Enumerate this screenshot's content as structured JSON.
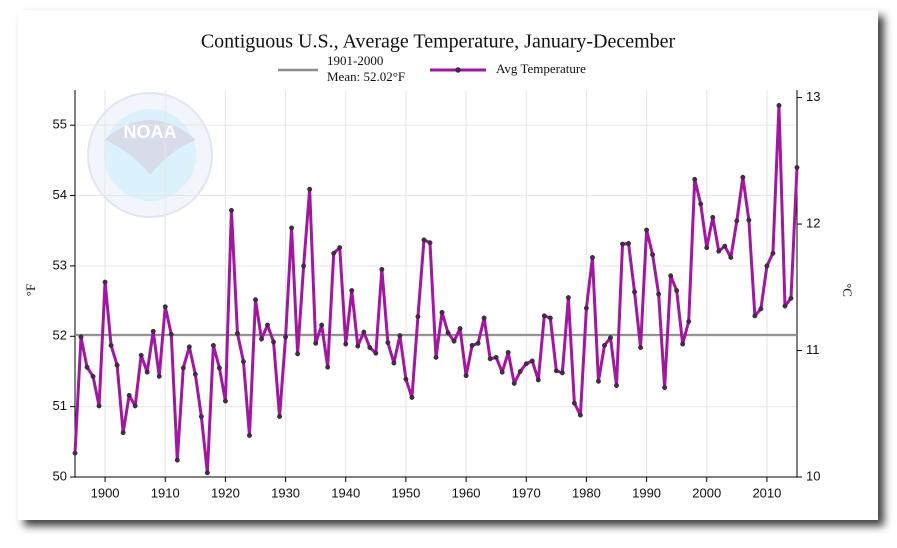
{
  "logo": {
    "name": "NOAA"
  },
  "chart_data": {
    "type": "line",
    "title": "Contiguous U.S., Average Temperature, January-December",
    "ylabel": "°F",
    "y2label": "°C",
    "xlim": [
      1895,
      2015
    ],
    "xticks": [
      1900,
      1910,
      1920,
      1930,
      1940,
      1950,
      1960,
      1970,
      1980,
      1990,
      2000,
      2010
    ],
    "ylim": [
      50,
      55.5
    ],
    "yticks": [
      50,
      51,
      52,
      53,
      54,
      55
    ],
    "y2lim": [
      10,
      13.06
    ],
    "y2ticks": [
      10,
      11,
      12,
      13
    ],
    "grid": true,
    "mean": {
      "label": [
        "1901-2000",
        "Mean: 52.02°F"
      ],
      "value": 52.02,
      "color": "#8c8c8c"
    },
    "x": [
      1895,
      1896,
      1897,
      1898,
      1899,
      1900,
      1901,
      1902,
      1903,
      1904,
      1905,
      1906,
      1907,
      1908,
      1909,
      1910,
      1911,
      1912,
      1913,
      1914,
      1915,
      1916,
      1917,
      1918,
      1919,
      1920,
      1921,
      1922,
      1923,
      1924,
      1925,
      1926,
      1927,
      1928,
      1929,
      1930,
      1931,
      1932,
      1933,
      1934,
      1935,
      1936,
      1937,
      1938,
      1939,
      1940,
      1941,
      1942,
      1943,
      1944,
      1945,
      1946,
      1947,
      1948,
      1949,
      1950,
      1951,
      1952,
      1953,
      1954,
      1955,
      1956,
      1957,
      1958,
      1959,
      1960,
      1961,
      1962,
      1963,
      1964,
      1965,
      1966,
      1967,
      1968,
      1969,
      1970,
      1971,
      1972,
      1973,
      1974,
      1975,
      1976,
      1977,
      1978,
      1979,
      1980,
      1981,
      1982,
      1983,
      1984,
      1985,
      1986,
      1987,
      1988,
      1989,
      1990,
      1991,
      1992,
      1993,
      1994,
      1995,
      1996,
      1997,
      1998,
      1999,
      2000,
      2001,
      2002,
      2003,
      2004,
      2005,
      2006,
      2007,
      2008,
      2009,
      2010,
      2011,
      2012,
      2013,
      2014,
      2015
    ],
    "series": [
      {
        "name": "Avg Temperature",
        "color": "#a0189f",
        "marker_color": "#4a2a4a",
        "values": [
          50.34,
          51.99,
          51.56,
          51.43,
          51.01,
          52.77,
          51.87,
          51.59,
          50.63,
          51.16,
          51.01,
          51.73,
          51.49,
          52.07,
          51.43,
          52.42,
          52.03,
          50.24,
          51.55,
          51.85,
          51.46,
          50.86,
          50.06,
          51.87,
          51.55,
          51.08,
          53.79,
          52.04,
          51.64,
          50.59,
          52.52,
          51.96,
          52.16,
          51.92,
          50.86,
          51.99,
          53.54,
          51.75,
          53.0,
          54.09,
          51.9,
          52.16,
          51.56,
          53.18,
          53.26,
          51.89,
          52.65,
          51.86,
          52.06,
          51.84,
          51.76,
          52.95,
          51.91,
          51.62,
          52.01,
          51.39,
          51.13,
          52.28,
          53.37,
          53.33,
          51.7,
          52.34,
          52.05,
          51.93,
          52.11,
          51.44,
          51.87,
          51.9,
          52.26,
          51.68,
          51.7,
          51.49,
          51.77,
          51.33,
          51.5,
          51.61,
          51.65,
          51.38,
          52.29,
          52.26,
          51.51,
          51.48,
          52.55,
          51.05,
          50.88,
          52.4,
          53.12,
          51.36,
          51.87,
          51.98,
          51.3,
          53.31,
          53.32,
          52.63,
          51.84,
          53.51,
          53.16,
          52.6,
          51.27,
          52.86,
          52.65,
          51.89,
          52.21,
          54.23,
          53.88,
          53.26,
          53.69,
          53.21,
          53.28,
          53.12,
          53.64,
          54.26,
          53.65,
          52.29,
          52.39,
          53.0,
          53.18,
          55.28,
          52.43,
          52.54,
          54.4
        ]
      }
    ]
  }
}
